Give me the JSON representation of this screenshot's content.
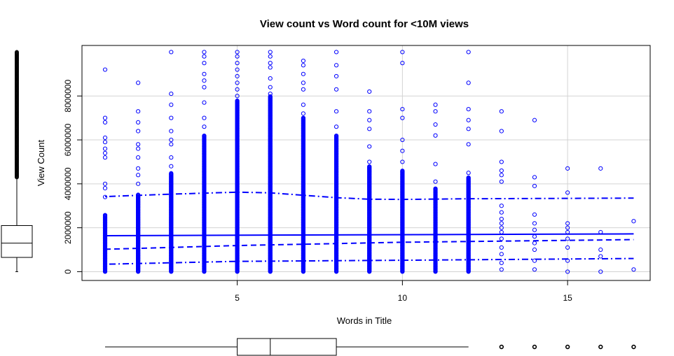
{
  "chart_data": {
    "type": "scatter",
    "title": "View count vs Word count for <10M views",
    "xlabel": "Words in Title",
    "ylabel": "View Count",
    "xlim": [
      0.3,
      17.5
    ],
    "ylim": [
      -400000,
      10300000
    ],
    "x_ticks": [
      5,
      10,
      15
    ],
    "y_ticks": [
      0,
      2000000,
      4000000,
      6000000,
      8000000
    ],
    "grid": true,
    "point_color": "#0000ff",
    "line_color": "#0000ff",
    "points": [
      {
        "x": 1,
        "y": 9200000
      },
      {
        "x": 1,
        "y": 7000000
      },
      {
        "x": 1,
        "y": 6800000
      },
      {
        "x": 1,
        "y": 6100000
      },
      {
        "x": 1,
        "y": 5900000
      },
      {
        "x": 1,
        "y": 5600000
      },
      {
        "x": 1,
        "y": 5400000
      },
      {
        "x": 1,
        "y": 5200000
      },
      {
        "x": 1,
        "y": 4000000
      },
      {
        "x": 1,
        "y": 3800000
      },
      {
        "x": 1,
        "y": 3400000
      },
      {
        "x": 2,
        "y": 8600000
      },
      {
        "x": 2,
        "y": 7300000
      },
      {
        "x": 2,
        "y": 6800000
      },
      {
        "x": 2,
        "y": 6400000
      },
      {
        "x": 2,
        "y": 5800000
      },
      {
        "x": 2,
        "y": 5600000
      },
      {
        "x": 2,
        "y": 5200000
      },
      {
        "x": 2,
        "y": 4700000
      },
      {
        "x": 2,
        "y": 4400000
      },
      {
        "x": 2,
        "y": 4000000
      },
      {
        "x": 3,
        "y": 10000000
      },
      {
        "x": 3,
        "y": 8100000
      },
      {
        "x": 3,
        "y": 7600000
      },
      {
        "x": 3,
        "y": 7000000
      },
      {
        "x": 3,
        "y": 6400000
      },
      {
        "x": 3,
        "y": 6000000
      },
      {
        "x": 3,
        "y": 5800000
      },
      {
        "x": 3,
        "y": 5200000
      },
      {
        "x": 3,
        "y": 4800000
      },
      {
        "x": 4,
        "y": 10000000
      },
      {
        "x": 4,
        "y": 9800000
      },
      {
        "x": 4,
        "y": 9500000
      },
      {
        "x": 4,
        "y": 9000000
      },
      {
        "x": 4,
        "y": 8700000
      },
      {
        "x": 4,
        "y": 8400000
      },
      {
        "x": 4,
        "y": 7700000
      },
      {
        "x": 4,
        "y": 7000000
      },
      {
        "x": 4,
        "y": 6600000
      },
      {
        "x": 5,
        "y": 10000000
      },
      {
        "x": 5,
        "y": 9800000
      },
      {
        "x": 5,
        "y": 9500000
      },
      {
        "x": 5,
        "y": 9200000
      },
      {
        "x": 5,
        "y": 8900000
      },
      {
        "x": 5,
        "y": 8600000
      },
      {
        "x": 5,
        "y": 8300000
      },
      {
        "x": 5,
        "y": 8000000
      },
      {
        "x": 6,
        "y": 10000000
      },
      {
        "x": 6,
        "y": 9800000
      },
      {
        "x": 6,
        "y": 9500000
      },
      {
        "x": 6,
        "y": 9300000
      },
      {
        "x": 6,
        "y": 8800000
      },
      {
        "x": 6,
        "y": 8400000
      },
      {
        "x": 6,
        "y": 8100000
      },
      {
        "x": 7,
        "y": 9600000
      },
      {
        "x": 7,
        "y": 9400000
      },
      {
        "x": 7,
        "y": 9000000
      },
      {
        "x": 7,
        "y": 8600000
      },
      {
        "x": 7,
        "y": 8300000
      },
      {
        "x": 7,
        "y": 7600000
      },
      {
        "x": 7,
        "y": 7200000
      },
      {
        "x": 8,
        "y": 10000000
      },
      {
        "x": 8,
        "y": 9400000
      },
      {
        "x": 8,
        "y": 8900000
      },
      {
        "x": 8,
        "y": 8300000
      },
      {
        "x": 8,
        "y": 7300000
      },
      {
        "x": 8,
        "y": 6600000
      },
      {
        "x": 9,
        "y": 8200000
      },
      {
        "x": 9,
        "y": 7300000
      },
      {
        "x": 9,
        "y": 6900000
      },
      {
        "x": 9,
        "y": 6500000
      },
      {
        "x": 9,
        "y": 5700000
      },
      {
        "x": 9,
        "y": 5000000
      },
      {
        "x": 10,
        "y": 10000000
      },
      {
        "x": 10,
        "y": 9500000
      },
      {
        "x": 10,
        "y": 7400000
      },
      {
        "x": 10,
        "y": 7000000
      },
      {
        "x": 10,
        "y": 6000000
      },
      {
        "x": 10,
        "y": 5500000
      },
      {
        "x": 10,
        "y": 5000000
      },
      {
        "x": 11,
        "y": 7600000
      },
      {
        "x": 11,
        "y": 7300000
      },
      {
        "x": 11,
        "y": 6700000
      },
      {
        "x": 11,
        "y": 6200000
      },
      {
        "x": 11,
        "y": 4900000
      },
      {
        "x": 11,
        "y": 4100000
      },
      {
        "x": 12,
        "y": 10000000
      },
      {
        "x": 12,
        "y": 8600000
      },
      {
        "x": 12,
        "y": 7400000
      },
      {
        "x": 12,
        "y": 6900000
      },
      {
        "x": 12,
        "y": 6500000
      },
      {
        "x": 12,
        "y": 5800000
      },
      {
        "x": 12,
        "y": 4500000
      },
      {
        "x": 13,
        "y": 7300000
      },
      {
        "x": 13,
        "y": 6400000
      },
      {
        "x": 13,
        "y": 5000000
      },
      {
        "x": 13,
        "y": 4600000
      },
      {
        "x": 13,
        "y": 4400000
      },
      {
        "x": 13,
        "y": 4100000
      },
      {
        "x": 13,
        "y": 3000000
      },
      {
        "x": 13,
        "y": 2700000
      },
      {
        "x": 13,
        "y": 2400000
      },
      {
        "x": 13,
        "y": 2200000
      },
      {
        "x": 13,
        "y": 2000000
      },
      {
        "x": 13,
        "y": 1800000
      },
      {
        "x": 13,
        "y": 1500000
      },
      {
        "x": 13,
        "y": 1100000
      },
      {
        "x": 13,
        "y": 800000
      },
      {
        "x": 13,
        "y": 400000
      },
      {
        "x": 13,
        "y": 100000
      },
      {
        "x": 14,
        "y": 6900000
      },
      {
        "x": 14,
        "y": 4300000
      },
      {
        "x": 14,
        "y": 3900000
      },
      {
        "x": 14,
        "y": 2600000
      },
      {
        "x": 14,
        "y": 2200000
      },
      {
        "x": 14,
        "y": 1900000
      },
      {
        "x": 14,
        "y": 1600000
      },
      {
        "x": 14,
        "y": 1300000
      },
      {
        "x": 14,
        "y": 1000000
      },
      {
        "x": 14,
        "y": 500000
      },
      {
        "x": 14,
        "y": 100000
      },
      {
        "x": 15,
        "y": 4700000
      },
      {
        "x": 15,
        "y": 3600000
      },
      {
        "x": 15,
        "y": 2200000
      },
      {
        "x": 15,
        "y": 2000000
      },
      {
        "x": 15,
        "y": 1800000
      },
      {
        "x": 15,
        "y": 1500000
      },
      {
        "x": 15,
        "y": 1100000
      },
      {
        "x": 15,
        "y": 500000
      },
      {
        "x": 15,
        "y": 0
      },
      {
        "x": 16,
        "y": 4700000
      },
      {
        "x": 16,
        "y": 1800000
      },
      {
        "x": 16,
        "y": 1000000
      },
      {
        "x": 16,
        "y": 700000
      },
      {
        "x": 16,
        "y": 0
      },
      {
        "x": 17,
        "y": 2300000
      },
      {
        "x": 17,
        "y": 100000
      }
    ],
    "dense_columns": [
      {
        "x": 1,
        "ymin": 0,
        "ymax": 2600000
      },
      {
        "x": 2,
        "ymin": 0,
        "ymax": 3500000
      },
      {
        "x": 3,
        "ymin": 0,
        "ymax": 4500000
      },
      {
        "x": 4,
        "ymin": 0,
        "ymax": 6200000
      },
      {
        "x": 5,
        "ymin": 0,
        "ymax": 7800000
      },
      {
        "x": 6,
        "ymin": 0,
        "ymax": 8000000
      },
      {
        "x": 7,
        "ymin": 0,
        "ymax": 7000000
      },
      {
        "x": 8,
        "ymin": 0,
        "ymax": 6200000
      },
      {
        "x": 9,
        "ymin": 0,
        "ymax": 4800000
      },
      {
        "x": 10,
        "ymin": 0,
        "ymax": 4600000
      },
      {
        "x": 11,
        "ymin": 0,
        "ymax": 3800000
      },
      {
        "x": 12,
        "ymin": 0,
        "ymax": 4300000
      }
    ],
    "fit_lines": [
      {
        "style": "solid",
        "points": [
          [
            1,
            1640000
          ],
          [
            17,
            1720000
          ]
        ]
      },
      {
        "style": "dashed",
        "points": [
          [
            1,
            1020000
          ],
          [
            5,
            1190000
          ],
          [
            10,
            1340000
          ],
          [
            17,
            1460000
          ]
        ]
      },
      {
        "style": "dotdash",
        "points": [
          [
            1,
            340000
          ],
          [
            5,
            470000
          ],
          [
            10,
            520000
          ],
          [
            17,
            600000
          ]
        ]
      },
      {
        "style": "dotdash",
        "points": [
          [
            1,
            3420000
          ],
          [
            3,
            3530000
          ],
          [
            5,
            3620000
          ],
          [
            6,
            3590000
          ],
          [
            7,
            3480000
          ],
          [
            8,
            3370000
          ],
          [
            9,
            3300000
          ],
          [
            10,
            3290000
          ],
          [
            12,
            3320000
          ],
          [
            17,
            3350000
          ]
        ]
      }
    ],
    "y_boxplot": {
      "min": 0,
      "q1": 650000,
      "median": 1300000,
      "q3": 2100000,
      "whisker_high": 4300000,
      "outliers_from": 4300000,
      "outliers_to": 10000000
    },
    "x_boxplot": {
      "min": 1,
      "q1": 5,
      "median": 6,
      "q3": 8,
      "whisker_high": 12,
      "outliers": [
        13,
        14,
        15,
        16,
        17
      ]
    }
  }
}
